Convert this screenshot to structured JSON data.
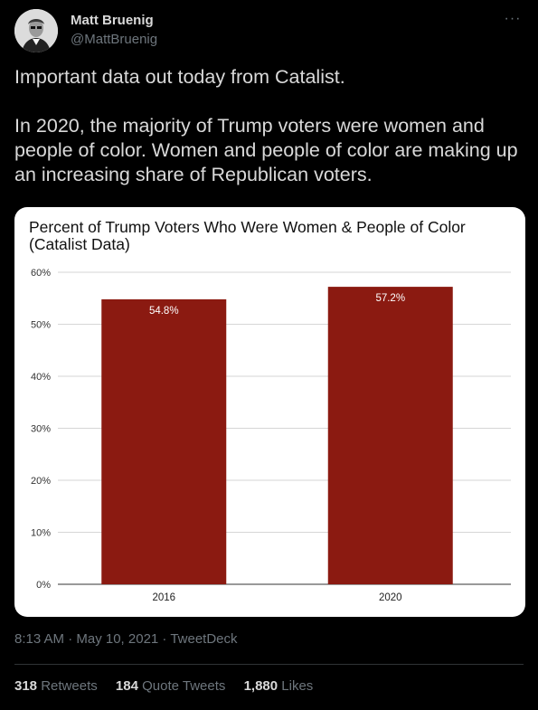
{
  "tweet": {
    "display_name": "Matt Bruenig",
    "handle": "@MattBruenig",
    "more_glyph": "···",
    "text": "Important data out today from Catalist.\n\nIn 2020, the majority of Trump voters were women and people of color. Women and people of color are making up an increasing share of Republican voters.",
    "timestamp": "8:13 AM · May 10, 2021 · TweetDeck",
    "stats": {
      "retweets_count": "318",
      "retweets_label": "Retweets",
      "quotes_count": "184",
      "quotes_label": "Quote Tweets",
      "likes_count": "1,880",
      "likes_label": "Likes"
    }
  },
  "colors": {
    "bar": "#8b1a11",
    "background": "#000000",
    "card": "#ffffff"
  },
  "chart_data": {
    "type": "bar",
    "title_lines": [
      "Percent of Trump Voters Who Were Women & People of Color",
      "(Catalist Data)"
    ],
    "categories": [
      "2016",
      "2020"
    ],
    "values": [
      54.8,
      57.2
    ],
    "data_labels": [
      "54.8%",
      "57.2%"
    ],
    "yticks": [
      "0%",
      "10%",
      "20%",
      "30%",
      "40%",
      "50%",
      "60%"
    ],
    "ylim": [
      0,
      60
    ],
    "grid": true,
    "legend": "none"
  }
}
